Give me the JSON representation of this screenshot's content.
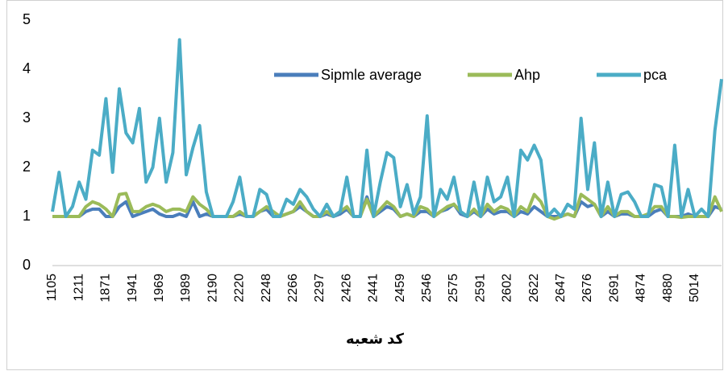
{
  "chart_data": {
    "type": "line",
    "x_label": "کد شعبه",
    "categories": [
      "1105",
      null,
      null,
      null,
      "1211",
      null,
      null,
      null,
      "1871",
      null,
      null,
      null,
      "1941",
      null,
      null,
      null,
      "1969",
      null,
      null,
      null,
      "1989",
      null,
      null,
      null,
      "2190",
      null,
      null,
      null,
      "2220",
      null,
      null,
      null,
      "2248",
      null,
      null,
      null,
      "2266",
      null,
      null,
      null,
      "2297",
      null,
      null,
      null,
      "2426",
      null,
      null,
      null,
      "2441",
      null,
      null,
      null,
      "2459",
      null,
      null,
      null,
      "2546",
      null,
      null,
      null,
      "2575",
      null,
      null,
      null,
      "2591",
      null,
      null,
      null,
      "2602",
      null,
      null,
      null,
      "2622",
      null,
      null,
      null,
      "2647",
      null,
      null,
      null,
      "2676",
      null,
      null,
      null,
      "2691",
      null,
      null,
      null,
      "4874",
      null,
      null,
      null,
      "4880",
      null,
      null,
      null,
      "5014",
      null,
      null,
      null,
      null
    ],
    "ylim": [
      0,
      5
    ],
    "yticks": [
      0,
      1,
      2,
      3,
      4,
      5
    ],
    "grid": false,
    "series": [
      {
        "name": "Sipmle average",
        "color": "#4a7ebb",
        "values": [
          1,
          1,
          1,
          1,
          1,
          1.1,
          1.15,
          1.15,
          1.0,
          1.0,
          1.2,
          1.3,
          1.0,
          1.05,
          1.1,
          1.15,
          1.05,
          1.0,
          1.0,
          1.05,
          1.0,
          1.3,
          1.0,
          1.05,
          1.0,
          1.0,
          1.0,
          1.0,
          1.05,
          1.0,
          1.0,
          1.1,
          1.15,
          1.0,
          1.0,
          1.05,
          1.1,
          1.2,
          1.1,
          1.0,
          1.0,
          1.05,
          1.0,
          1.05,
          1.15,
          1.0,
          1.0,
          1.4,
          1.0,
          1.1,
          1.2,
          1.15,
          1.0,
          1.05,
          1.0,
          1.1,
          1.1,
          1.0,
          1.1,
          1.15,
          1.25,
          1.05,
          1.0,
          1.1,
          1.0,
          1.15,
          1.05,
          1.1,
          1.1,
          1.0,
          1.1,
          1.05,
          1.2,
          1.1,
          1.0,
          1.0,
          1.0,
          1.05,
          1.0,
          1.3,
          1.2,
          1.25,
          1.0,
          1.1,
          1.0,
          1.05,
          1.05,
          1.0,
          1.0,
          1.0,
          1.1,
          1.15,
          1.0,
          1.0,
          1.0,
          1.05,
          1.0,
          1.0,
          1.0,
          1.2,
          1.15
        ]
      },
      {
        "name": "Ahp",
        "color": "#9bbb59",
        "values": [
          1,
          1,
          1,
          1,
          1,
          1.2,
          1.3,
          1.25,
          1.15,
          1.0,
          1.45,
          1.47,
          1.1,
          1.1,
          1.2,
          1.25,
          1.2,
          1.1,
          1.15,
          1.15,
          1.1,
          1.4,
          1.25,
          1.15,
          1.0,
          1.0,
          1.0,
          1.0,
          1.1,
          1.0,
          1.0,
          1.1,
          1.2,
          1.1,
          1.0,
          1.05,
          1.1,
          1.3,
          1.1,
          1.0,
          1.0,
          1.1,
          1.0,
          1.1,
          1.2,
          1.0,
          1.0,
          1.35,
          1.0,
          1.15,
          1.3,
          1.2,
          1.0,
          1.05,
          1.0,
          1.2,
          1.15,
          1.0,
          1.1,
          1.2,
          1.25,
          1.1,
          1.0,
          1.15,
          1.0,
          1.25,
          1.1,
          1.2,
          1.15,
          1.0,
          1.2,
          1.1,
          1.45,
          1.3,
          1.0,
          0.95,
          1.0,
          1.05,
          1.0,
          1.45,
          1.35,
          1.25,
          1.0,
          1.2,
          1.0,
          1.1,
          1.1,
          1.0,
          1.0,
          1.05,
          1.2,
          1.2,
          1.0,
          1.0,
          0.98,
          1.0,
          1.0,
          1.0,
          1.0,
          1.4,
          1.1
        ]
      },
      {
        "name": "pca",
        "color": "#4bacc6",
        "values": [
          1.1,
          1.9,
          1.0,
          1.2,
          1.7,
          1.35,
          2.35,
          2.25,
          3.4,
          1.9,
          3.6,
          2.7,
          2.5,
          3.2,
          1.7,
          2.0,
          3.0,
          1.7,
          2.3,
          4.6,
          1.85,
          2.4,
          2.85,
          1.5,
          1.0,
          1.0,
          1.0,
          1.3,
          1.8,
          1.0,
          1.0,
          1.55,
          1.45,
          1.0,
          1.0,
          1.35,
          1.25,
          1.55,
          1.4,
          1.15,
          1.0,
          1.25,
          1.0,
          1.1,
          1.8,
          1.0,
          1.0,
          2.35,
          1.0,
          1.7,
          2.3,
          2.2,
          1.2,
          1.65,
          1.05,
          1.4,
          3.05,
          1.0,
          1.55,
          1.35,
          1.8,
          1.1,
          1.0,
          1.7,
          1.0,
          1.8,
          1.3,
          1.4,
          1.8,
          1.0,
          2.35,
          2.15,
          2.45,
          2.15,
          1.0,
          1.15,
          1.0,
          1.25,
          1.15,
          3.0,
          1.55,
          2.5,
          1.0,
          1.7,
          1.0,
          1.45,
          1.5,
          1.3,
          1.0,
          1.0,
          1.65,
          1.6,
          1.0,
          2.45,
          1.0,
          1.55,
          1.0,
          1.15,
          1.0,
          2.75,
          3.8
        ]
      }
    ]
  }
}
